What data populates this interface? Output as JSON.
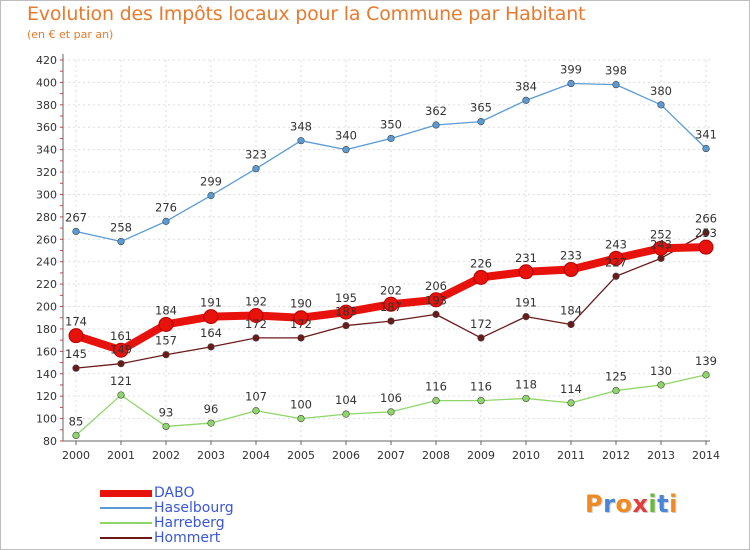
{
  "header": {
    "title": "Evolution des Impôts locaux pour la Commune par Habitant",
    "subtitle": "(en € et par an)"
  },
  "brand": {
    "text": "Proxiti",
    "letter_colors": [
      "#f08a24",
      "#4a86d8",
      "#f08a24",
      "#e53b3b",
      "#6ab83c",
      "#4a86d8",
      "#f08a24"
    ]
  },
  "chart_data": {
    "type": "line",
    "x": [
      "2000",
      "2001",
      "2002",
      "2003",
      "2004",
      "2005",
      "2006",
      "2007",
      "2008",
      "2009",
      "2010",
      "2011",
      "2012",
      "2013",
      "2014"
    ],
    "ylim": [
      80,
      420
    ],
    "yticks": [
      80,
      100,
      120,
      140,
      160,
      180,
      200,
      220,
      240,
      260,
      280,
      300,
      320,
      340,
      360,
      380,
      400,
      420
    ],
    "grid": true,
    "legend_position": "bottom-left",
    "series": [
      {
        "name": "DABO",
        "color": "#e8120c",
        "emphasis": true,
        "values": [
          174,
          161,
          184,
          191,
          192,
          190,
          195,
          202,
          206,
          226,
          231,
          233,
          243,
          252,
          253
        ],
        "labels": [
          "174",
          "161",
          "184",
          "191",
          "192",
          "190",
          "195",
          "202",
          "206",
          "226",
          "231",
          "233",
          "243",
          "252",
          "253"
        ]
      },
      {
        "name": "Haselbourg",
        "color": "#5b9bd5",
        "values": [
          267,
          258,
          276,
          299,
          323,
          348,
          340,
          350,
          362,
          365,
          384,
          399,
          398,
          380,
          341
        ],
        "labels": [
          "267",
          "258",
          "276",
          "299",
          "323",
          "348",
          "340",
          "350",
          "362",
          "365",
          "384",
          "399",
          "398",
          "380",
          "341"
        ]
      },
      {
        "name": "Harreberg",
        "color": "#8fd66a",
        "values": [
          85,
          121,
          93,
          96,
          107,
          100,
          104,
          106,
          116,
          116,
          118,
          114,
          125,
          130,
          139
        ],
        "labels": [
          "85",
          "121",
          "93",
          "96",
          "107",
          "100",
          "104",
          "106",
          "116",
          "116",
          "118",
          "114",
          "125",
          "130",
          "139"
        ]
      },
      {
        "name": "Hommert",
        "color": "#6b1a1a",
        "values": [
          145,
          149,
          157,
          164,
          172,
          172,
          183,
          187,
          193,
          172,
          191,
          184,
          227,
          243,
          266
        ],
        "labels": [
          "145",
          "149",
          "157",
          "164",
          "172",
          "172",
          "183",
          "187",
          "193",
          "172",
          "191",
          "184",
          "227",
          "243",
          "266"
        ]
      }
    ]
  }
}
